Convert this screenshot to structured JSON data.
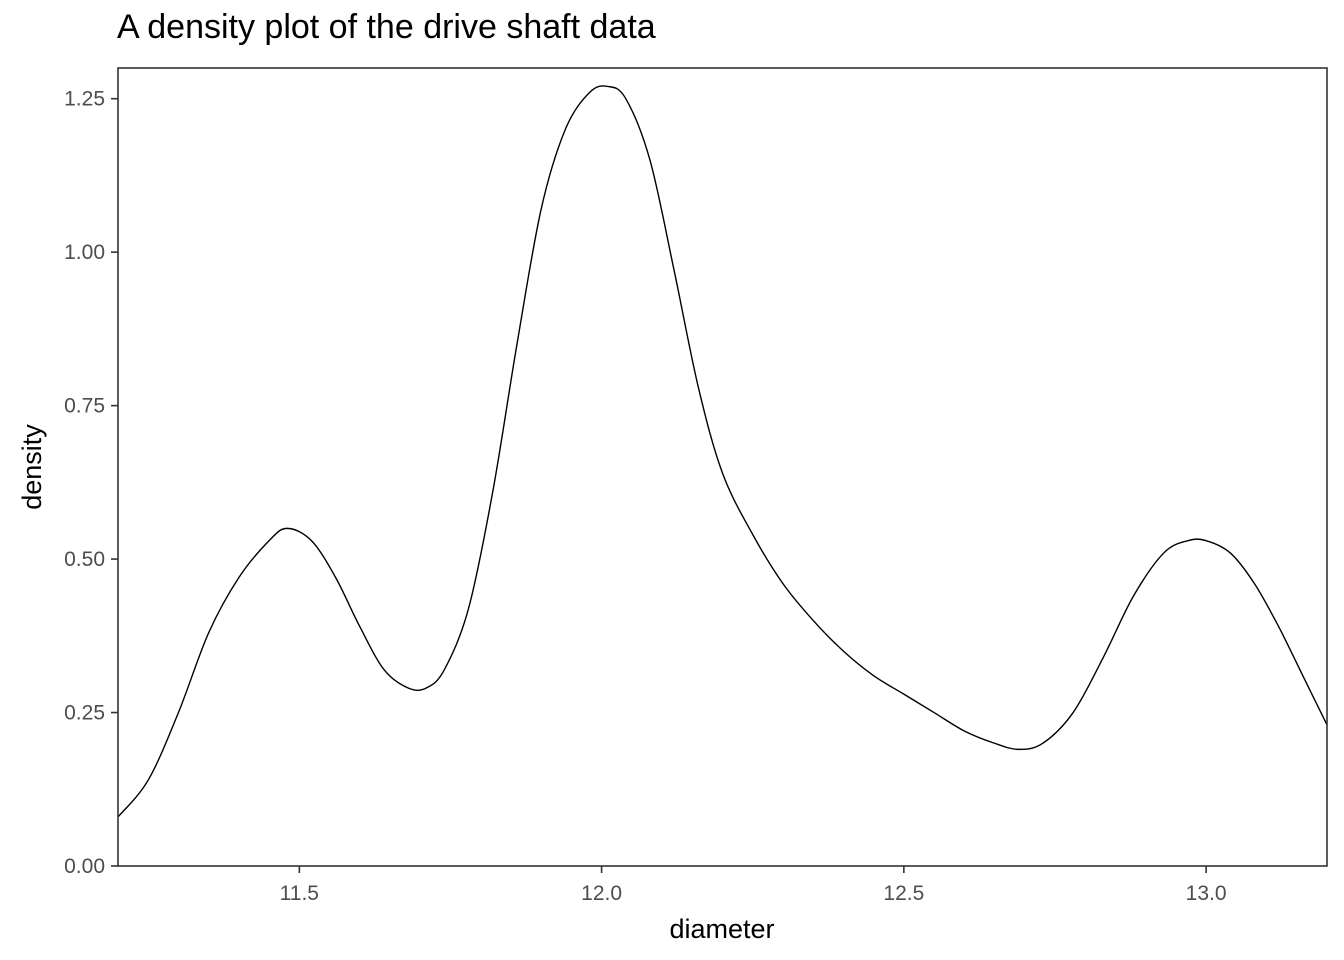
{
  "chart_data": {
    "type": "line",
    "title": "A density plot of the drive shaft data",
    "xlabel": "diameter",
    "ylabel": "density",
    "xlim": [
      11.2,
      13.2
    ],
    "ylim": [
      0.0,
      1.3
    ],
    "x_ticks": [
      11.5,
      12.0,
      12.5,
      13.0
    ],
    "x_tick_labels": [
      "11.5",
      "12.0",
      "12.5",
      "13.0"
    ],
    "y_ticks": [
      0.0,
      0.25,
      0.5,
      0.75,
      1.0,
      1.25
    ],
    "y_tick_labels": [
      "0.00",
      "0.25",
      "0.50",
      "0.75",
      "1.00",
      "1.25"
    ],
    "grid": false,
    "line_color": "#000000",
    "panel_border_color": "#333333",
    "series": [
      {
        "x": [
          11.2,
          11.25,
          11.3,
          11.35,
          11.4,
          11.45,
          11.48,
          11.52,
          11.56,
          11.6,
          11.64,
          11.68,
          11.71,
          11.74,
          11.78,
          11.82,
          11.86,
          11.9,
          11.94,
          11.98,
          12.01,
          12.04,
          12.08,
          12.12,
          12.16,
          12.2,
          12.25,
          12.3,
          12.35,
          12.4,
          12.45,
          12.5,
          12.55,
          12.6,
          12.65,
          12.69,
          12.73,
          12.78,
          12.83,
          12.88,
          12.93,
          12.97,
          13.0,
          13.04,
          13.08,
          13.12,
          13.16,
          13.2
        ],
        "y": [
          0.08,
          0.14,
          0.25,
          0.38,
          0.47,
          0.53,
          0.55,
          0.53,
          0.47,
          0.39,
          0.32,
          0.29,
          0.29,
          0.32,
          0.42,
          0.61,
          0.85,
          1.07,
          1.2,
          1.26,
          1.27,
          1.25,
          1.15,
          0.97,
          0.78,
          0.64,
          0.54,
          0.46,
          0.4,
          0.35,
          0.31,
          0.28,
          0.25,
          0.22,
          0.2,
          0.19,
          0.2,
          0.25,
          0.34,
          0.44,
          0.51,
          0.53,
          0.53,
          0.51,
          0.46,
          0.39,
          0.31,
          0.23
        ]
      }
    ]
  }
}
